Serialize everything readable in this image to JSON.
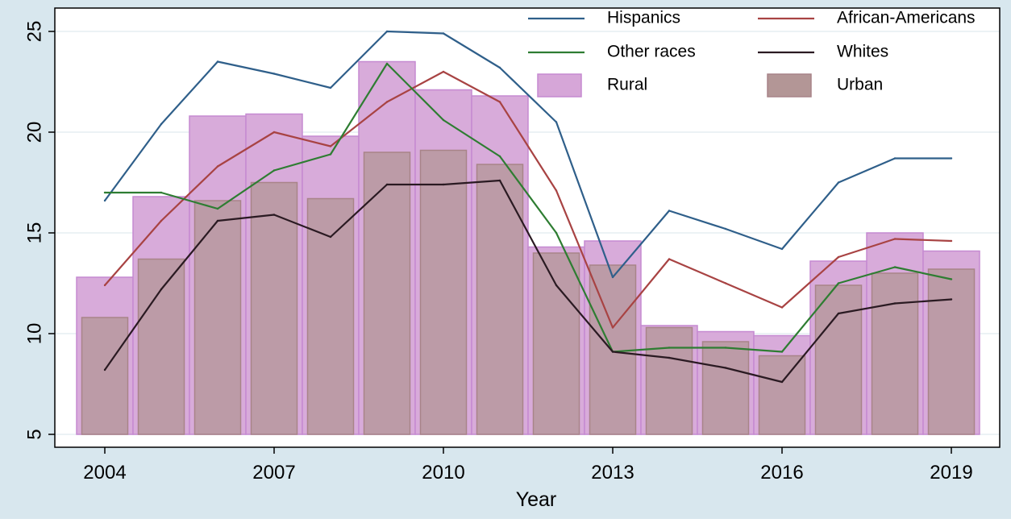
{
  "chart_data": {
    "type": "bar",
    "xlabel": "Year",
    "ylabel": "",
    "ylim": [
      5,
      25
    ],
    "y_ticks": [
      5,
      10,
      15,
      20,
      25
    ],
    "x_ticks": [
      2004,
      2007,
      2010,
      2013,
      2016,
      2019
    ],
    "x": [
      2004,
      2005,
      2006,
      2007,
      2008,
      2009,
      2010,
      2011,
      2012,
      2013,
      2014,
      2015,
      2016,
      2017,
      2018,
      2019
    ],
    "grid": true,
    "legend_position": "top-right",
    "colors": {
      "background": "#d8e7ee",
      "plot_background": "#ffffff",
      "grid": "#e6eef2",
      "hispanics": "#2f5f8a",
      "african_americans": "#a84343",
      "other_races": "#2e7d32",
      "whites": "#2a1a22",
      "rural_fill": "#d6a6d8",
      "rural_stroke": "#c58ad1",
      "urban_fill": "#b39696",
      "urban_stroke": "#a88488"
    },
    "bars": [
      {
        "name": "Rural",
        "color_key": "rural",
        "values": [
          12.8,
          16.8,
          20.8,
          20.9,
          19.8,
          23.5,
          22.1,
          21.8,
          14.3,
          14.6,
          10.4,
          10.1,
          9.9,
          13.6,
          15.0,
          14.1
        ]
      },
      {
        "name": "Urban",
        "color_key": "urban",
        "values": [
          10.8,
          13.7,
          16.6,
          17.5,
          16.7,
          19.0,
          19.1,
          18.4,
          14.0,
          13.4,
          10.3,
          9.6,
          8.9,
          12.4,
          13.0,
          13.2
        ]
      }
    ],
    "series": [
      {
        "name": "Hispanics",
        "color_key": "hispanics",
        "values": [
          16.6,
          20.4,
          23.5,
          22.9,
          22.2,
          25.0,
          24.9,
          23.2,
          20.5,
          12.8,
          16.1,
          15.2,
          14.2,
          17.5,
          18.7,
          18.7
        ]
      },
      {
        "name": "African-Americans",
        "color_key": "african_americans",
        "values": [
          12.4,
          15.6,
          18.3,
          20.0,
          19.3,
          21.5,
          23.0,
          21.5,
          17.1,
          10.3,
          13.7,
          12.5,
          11.3,
          13.8,
          14.7,
          14.6
        ]
      },
      {
        "name": "Other races",
        "color_key": "other_races",
        "values": [
          17.0,
          17.0,
          16.2,
          18.1,
          18.9,
          23.4,
          20.6,
          18.8,
          15.0,
          9.1,
          9.3,
          9.3,
          9.1,
          12.5,
          13.3,
          12.7
        ]
      },
      {
        "name": "Whites",
        "color_key": "whites",
        "values": [
          8.2,
          12.2,
          15.6,
          15.9,
          14.8,
          17.4,
          17.4,
          17.6,
          12.4,
          9.1,
          8.8,
          8.3,
          7.6,
          11.0,
          11.5,
          11.7
        ]
      }
    ],
    "legend": [
      {
        "label": "Hispanics",
        "kind": "line",
        "color_key": "hispanics"
      },
      {
        "label": "African-Americans",
        "kind": "line",
        "color_key": "african_americans"
      },
      {
        "label": "Other races",
        "kind": "line",
        "color_key": "other_races"
      },
      {
        "label": "Whites",
        "kind": "line",
        "color_key": "whites"
      },
      {
        "label": "Rural",
        "kind": "box",
        "color_key": "rural"
      },
      {
        "label": "Urban",
        "kind": "box",
        "color_key": "urban"
      }
    ]
  }
}
